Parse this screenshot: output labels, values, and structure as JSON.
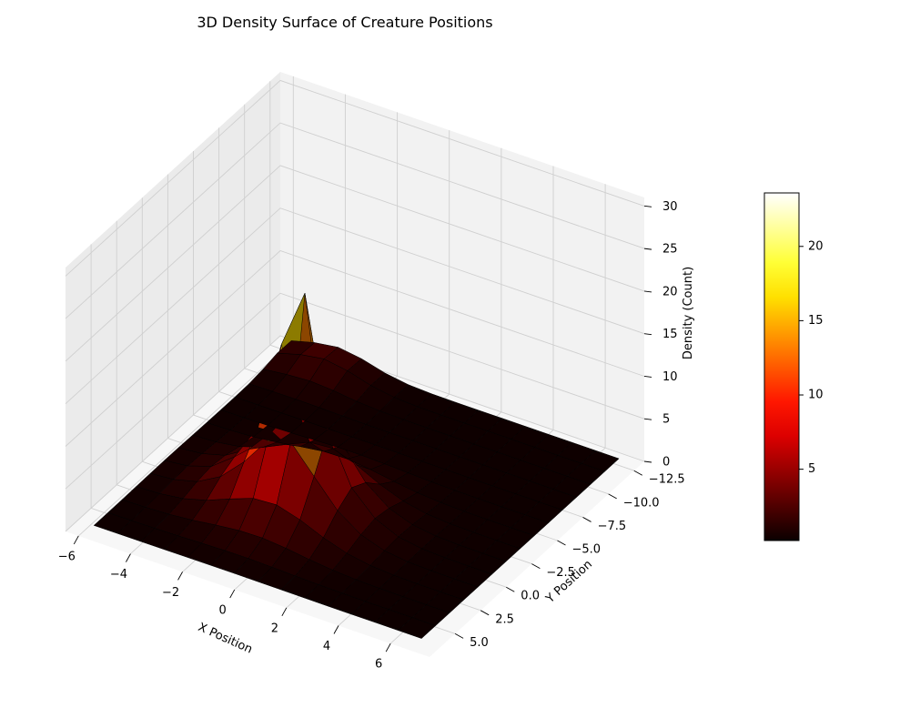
{
  "chart_data": {
    "type": "surface3d",
    "title": "3D Density Surface of Creature Positions",
    "xlabel": "X Position",
    "ylabel": "Y Position",
    "zlabel": "Density (Count)",
    "xlim": [
      -6.5,
      7.5
    ],
    "ylim": [
      -13.5,
      7.5
    ],
    "zlim": [
      0,
      31
    ],
    "x_ticks": [
      -6,
      -4,
      -2,
      0,
      2,
      4,
      6
    ],
    "x_tick_labels": [
      "−6",
      "−4",
      "−2",
      "0",
      "2",
      "4",
      "6"
    ],
    "y_ticks": [
      -12.5,
      -10.0,
      -7.5,
      -5.0,
      -2.5,
      0.0,
      2.5,
      5.0
    ],
    "y_tick_labels": [
      "−12.5",
      "−10.0",
      "−7.5",
      "−5.0",
      "−2.5",
      "0.0",
      "2.5",
      "5.0"
    ],
    "z_ticks": [
      0,
      5,
      10,
      15,
      20,
      25,
      30
    ],
    "z_tick_labels": [
      "0",
      "5",
      "10",
      "15",
      "20",
      "25",
      "30"
    ],
    "grid": true,
    "colormap": "hot",
    "colorbar": {
      "min": 0.2,
      "max": 23.6,
      "ticks": [
        5,
        10,
        15,
        20
      ],
      "tick_labels": [
        "5",
        "10",
        "15",
        "20"
      ],
      "placement": "right"
    },
    "surface": {
      "x_range": [
        -5.8,
        6.8
      ],
      "y_range": [
        -12.8,
        6.5
      ],
      "nx": 15,
      "ny": 15,
      "peak": {
        "x": -0.7,
        "y": -0.5,
        "z": 30.2
      },
      "secondary_bump": {
        "x": -4.0,
        "y": -12.0,
        "z": 2.0
      }
    }
  },
  "colors": {
    "pane_left": "#ebebeb",
    "pane_right": "#f2f2f2",
    "pane_floor": "#f7f7f7",
    "grid": "#cfcfcf",
    "edge": "#000000"
  }
}
